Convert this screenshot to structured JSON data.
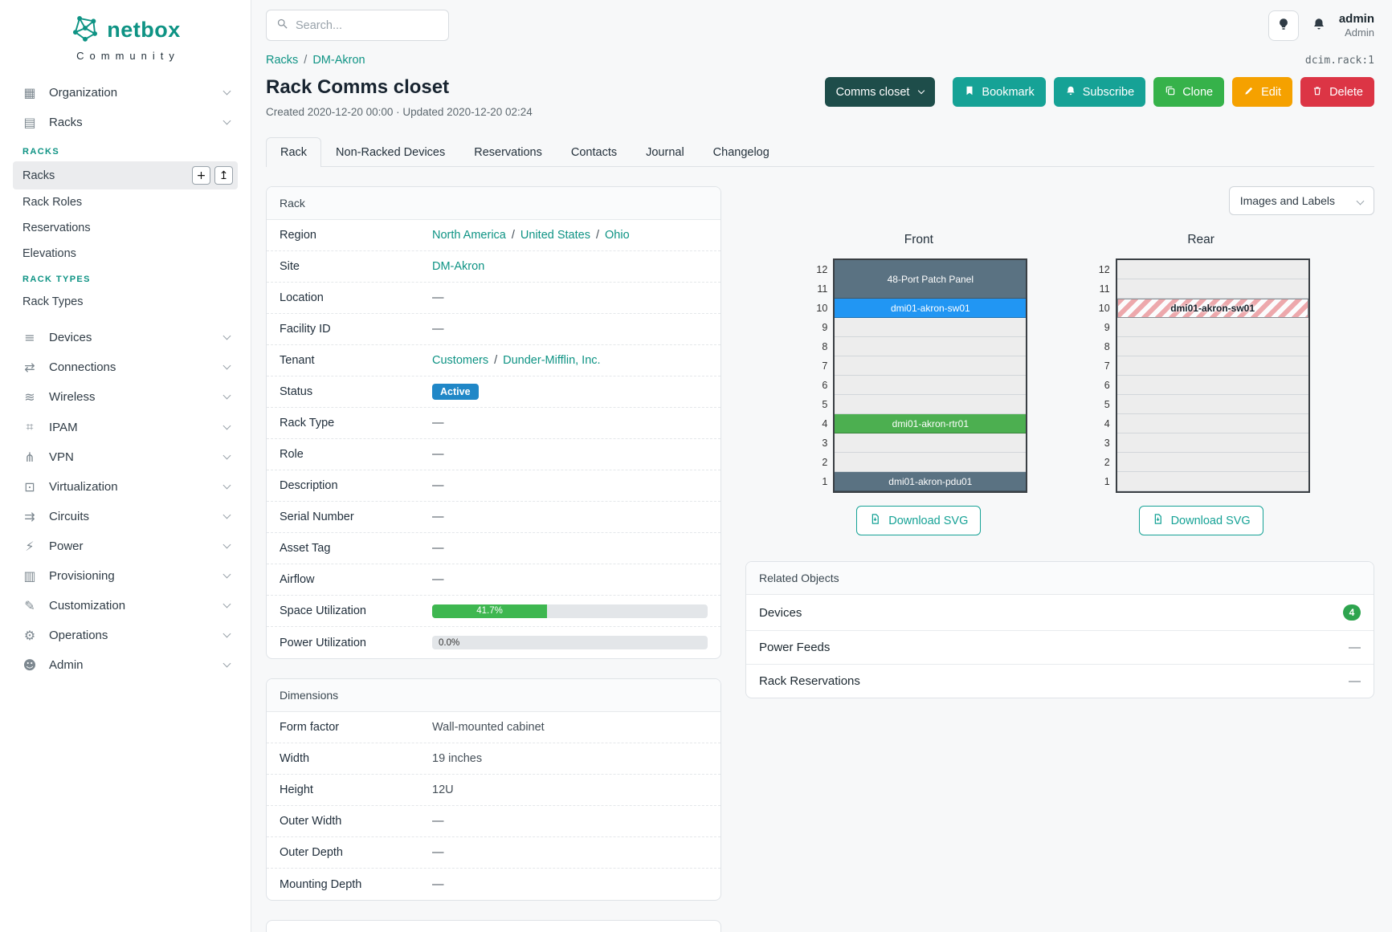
{
  "brand": {
    "name": "netbox",
    "tagline": "Community"
  },
  "topbar": {
    "search_placeholder": "Search...",
    "user_name": "admin",
    "user_role": "Admin"
  },
  "sidebar": {
    "items": [
      {
        "label": "Organization",
        "icon": "organization-icon"
      },
      {
        "label": "Racks",
        "icon": "racks-icon",
        "expanded": true
      },
      {
        "label": "Devices",
        "icon": "devices-icon"
      },
      {
        "label": "Connections",
        "icon": "connections-icon"
      },
      {
        "label": "Wireless",
        "icon": "wireless-icon"
      },
      {
        "label": "IPAM",
        "icon": "ipam-icon"
      },
      {
        "label": "VPN",
        "icon": "vpn-icon"
      },
      {
        "label": "Virtualization",
        "icon": "virtualization-icon"
      },
      {
        "label": "Circuits",
        "icon": "circuits-icon"
      },
      {
        "label": "Power",
        "icon": "power-icon"
      },
      {
        "label": "Provisioning",
        "icon": "provisioning-icon"
      },
      {
        "label": "Customization",
        "icon": "customization-icon"
      },
      {
        "label": "Operations",
        "icon": "operations-icon"
      },
      {
        "label": "Admin",
        "icon": "admin-icon"
      }
    ],
    "racks_submenu": {
      "groups": [
        {
          "header": "RACKS",
          "items": [
            {
              "label": "Racks",
              "active": true
            },
            {
              "label": "Rack Roles"
            },
            {
              "label": "Reservations"
            },
            {
              "label": "Elevations"
            }
          ]
        },
        {
          "header": "RACK TYPES",
          "items": [
            {
              "label": "Rack Types"
            }
          ]
        }
      ]
    }
  },
  "breadcrumb": {
    "a": "Racks",
    "b": "DM-Akron"
  },
  "misc": {
    "slash": "/"
  },
  "object_id": "dcim.rack:1",
  "page": {
    "title": "Rack Comms closet",
    "meta": "Created 2020-12-20 00:00 · Updated 2020-12-20 02:24"
  },
  "actions": {
    "context_label": "Comms closet",
    "bookmark": "Bookmark",
    "subscribe": "Subscribe",
    "clone": "Clone",
    "edit": "Edit",
    "delete": "Delete"
  },
  "tabs": [
    "Rack",
    "Non-Racked Devices",
    "Reservations",
    "Contacts",
    "Journal",
    "Changelog"
  ],
  "rack_panel": {
    "title": "Rack",
    "region_label": "Region",
    "region_links": {
      "a": "North America",
      "b": "United States",
      "c": "Ohio"
    },
    "site_label": "Site",
    "site_link": "DM-Akron",
    "location_label": "Location",
    "location_value": "—",
    "facility_label": "Facility ID",
    "facility_value": "—",
    "tenant_label": "Tenant",
    "tenant_links": {
      "a": "Customers",
      "b": "Dunder-Mifflin, Inc."
    },
    "status_label": "Status",
    "status_value": "Active",
    "status_color": "#2087c7",
    "rack_type_label": "Rack Type",
    "rack_type_value": "—",
    "role_label": "Role",
    "role_value": "—",
    "description_label": "Description",
    "description_value": "—",
    "serial_label": "Serial Number",
    "serial_value": "—",
    "asset_label": "Asset Tag",
    "asset_value": "—",
    "airflow_label": "Airflow",
    "airflow_value": "—",
    "space_label": "Space Utilization",
    "space_value": "41.7%",
    "space_pct": 41.7,
    "power_label": "Power Utilization",
    "power_value": "0.0%",
    "power_pct": 0
  },
  "dimensions_panel": {
    "title": "Dimensions",
    "rows": [
      {
        "label": "Form factor",
        "value": "Wall-mounted cabinet"
      },
      {
        "label": "Width",
        "value": "19 inches"
      },
      {
        "label": "Height",
        "value": "12U"
      },
      {
        "label": "Outer Width",
        "value": "—"
      },
      {
        "label": "Outer Depth",
        "value": "—"
      },
      {
        "label": "Mounting Depth",
        "value": "—"
      }
    ]
  },
  "elevation": {
    "view_selector": "Images and Labels",
    "units": 12,
    "download_label": "Download SVG",
    "front": {
      "label": "Front",
      "devices": [
        {
          "unit": 12,
          "u_height": 2,
          "name": "48-Port Patch Panel",
          "color": "#5a7282"
        },
        {
          "unit": 10,
          "u_height": 1,
          "name": "dmi01-akron-sw01",
          "color": "#2196f3"
        },
        {
          "unit": 4,
          "u_height": 1,
          "name": "dmi01-akron-rtr01",
          "color": "#4caf50"
        },
        {
          "unit": 1,
          "u_height": 1,
          "name": "dmi01-akron-pdu01",
          "color": "#5a7282"
        }
      ]
    },
    "rear": {
      "label": "Rear",
      "devices": [
        {
          "unit": 10,
          "u_height": 1,
          "name": "dmi01-akron-sw01",
          "pattern": "stripes"
        }
      ]
    }
  },
  "related": {
    "title": "Related Objects",
    "rows": [
      {
        "label": "Devices",
        "count": 4
      },
      {
        "label": "Power Feeds",
        "value": "—"
      },
      {
        "label": "Rack Reservations",
        "value": "—"
      }
    ]
  }
}
